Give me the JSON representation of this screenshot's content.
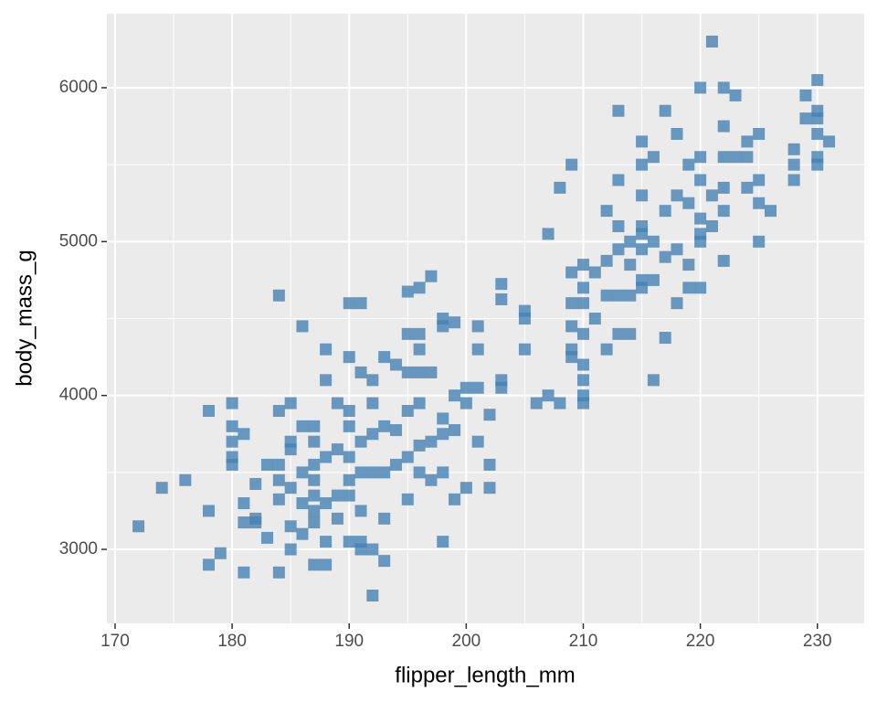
{
  "chart_data": {
    "type": "scatter",
    "x_label": "flipper_length_mm",
    "y_label": "body_mass_g",
    "color": "#4682b4",
    "marker": "square",
    "grid": true,
    "xlim": [
      169.3,
      234
    ],
    "ylim": [
      2519,
      6481
    ],
    "xticks": [
      170,
      180,
      190,
      200,
      210,
      220,
      230
    ],
    "yticks": [
      3000,
      4000,
      5000,
      6000
    ],
    "x": [
      172,
      174,
      176,
      178,
      178,
      178,
      179,
      180,
      180,
      180,
      180,
      180,
      181,
      181,
      181,
      181,
      182,
      182,
      182,
      183,
      183,
      184,
      184,
      184,
      184,
      184,
      184,
      185,
      185,
      185,
      185,
      185,
      185,
      186,
      186,
      186,
      186,
      186,
      187,
      187,
      187,
      187,
      187,
      187,
      187,
      187,
      188,
      188,
      188,
      188,
      188,
      188,
      189,
      189,
      189,
      189,
      190,
      190,
      190,
      190,
      190,
      190,
      190,
      190,
      191,
      191,
      191,
      191,
      191,
      191,
      191,
      192,
      192,
      192,
      192,
      192,
      192,
      193,
      193,
      193,
      193,
      193,
      194,
      194,
      194,
      195,
      195,
      195,
      195,
      195,
      195,
      196,
      196,
      196,
      196,
      196,
      196,
      196,
      197,
      197,
      197,
      197,
      198,
      198,
      198,
      198,
      198,
      198,
      199,
      199,
      199,
      199,
      200,
      200,
      200,
      201,
      201,
      201,
      201,
      202,
      202,
      202,
      203,
      203,
      203,
      203,
      205,
      205,
      205,
      206,
      207,
      207,
      208,
      208,
      209,
      209,
      209,
      209,
      209,
      209,
      210,
      210,
      210,
      210,
      210,
      210,
      210,
      210,
      211,
      211,
      212,
      212,
      212,
      212,
      213,
      213,
      213,
      213,
      213,
      213,
      214,
      214,
      214,
      214,
      215,
      215,
      215,
      215,
      215,
      215,
      215,
      215,
      216,
      216,
      216,
      216,
      217,
      217,
      217,
      217,
      218,
      218,
      218,
      218,
      219,
      219,
      219,
      219,
      220,
      220,
      220,
      220,
      220,
      220,
      220,
      221,
      221,
      221,
      222,
      222,
      222,
      222,
      222,
      222,
      223,
      223,
      224,
      224,
      224,
      225,
      225,
      225,
      225,
      226,
      228,
      228,
      228,
      229,
      229,
      230,
      230,
      230,
      230,
      230,
      230,
      231
    ],
    "values": [
      3150,
      3400,
      3450,
      3250,
      3900,
      2900,
      2975,
      3950,
      3800,
      3700,
      3600,
      3550,
      3750,
      3300,
      3175,
      2850,
      3425,
      3200,
      3175,
      3075,
      3550,
      3900,
      3550,
      3450,
      3325,
      2850,
      4650,
      3950,
      3700,
      3650,
      3400,
      3150,
      3000,
      3800,
      3500,
      3300,
      3100,
      4450,
      3800,
      3700,
      3550,
      3450,
      3350,
      3250,
      3175,
      2900,
      3600,
      3300,
      3050,
      2900,
      4300,
      4100,
      3950,
      3650,
      3350,
      3200,
      4250,
      3900,
      3800,
      3600,
      3450,
      3350,
      3050,
      4600,
      4600,
      4150,
      3700,
      3500,
      3250,
      3050,
      3000,
      4100,
      3950,
      3750,
      3500,
      3000,
      2700,
      4250,
      3800,
      3500,
      3200,
      2925,
      4200,
      3775,
      3550,
      4400,
      4150,
      3900,
      3600,
      3325,
      4675,
      4700,
      4400,
      4150,
      3950,
      3675,
      3500,
      4300,
      4775,
      4150,
      3700,
      3450,
      4500,
      4450,
      3850,
      3750,
      3500,
      3050,
      4475,
      4000,
      3775,
      3325,
      4050,
      3950,
      3400,
      4450,
      4300,
      4050,
      3700,
      3875,
      3550,
      3400,
      4100,
      4050,
      4725,
      4625,
      4550,
      4500,
      4300,
      3950,
      5050,
      4000,
      5350,
      3950,
      5500,
      4800,
      4600,
      4450,
      4300,
      4250,
      4850,
      4700,
      4600,
      4400,
      4200,
      4100,
      4000,
      3950,
      4800,
      4500,
      5200,
      4650,
      4300,
      4875,
      5850,
      5400,
      5100,
      4950,
      4650,
      4400,
      5000,
      4850,
      4650,
      4400,
      5650,
      5500,
      5300,
      5100,
      5050,
      4950,
      4750,
      4700,
      5550,
      5000,
      4750,
      4100,
      5850,
      5200,
      4900,
      4375,
      5700,
      5300,
      4950,
      4600,
      5500,
      5250,
      4850,
      4700,
      6000,
      5550,
      5400,
      5150,
      5050,
      5000,
      4700,
      6300,
      5300,
      5100,
      6000,
      5750,
      5550,
      5350,
      5200,
      4875,
      5950,
      5550,
      5650,
      5550,
      5350,
      5700,
      5400,
      5250,
      5000,
      5200,
      5600,
      5500,
      5400,
      5950,
      5800,
      6050,
      5850,
      5800,
      5700,
      5550,
      5500,
      5650
    ]
  }
}
